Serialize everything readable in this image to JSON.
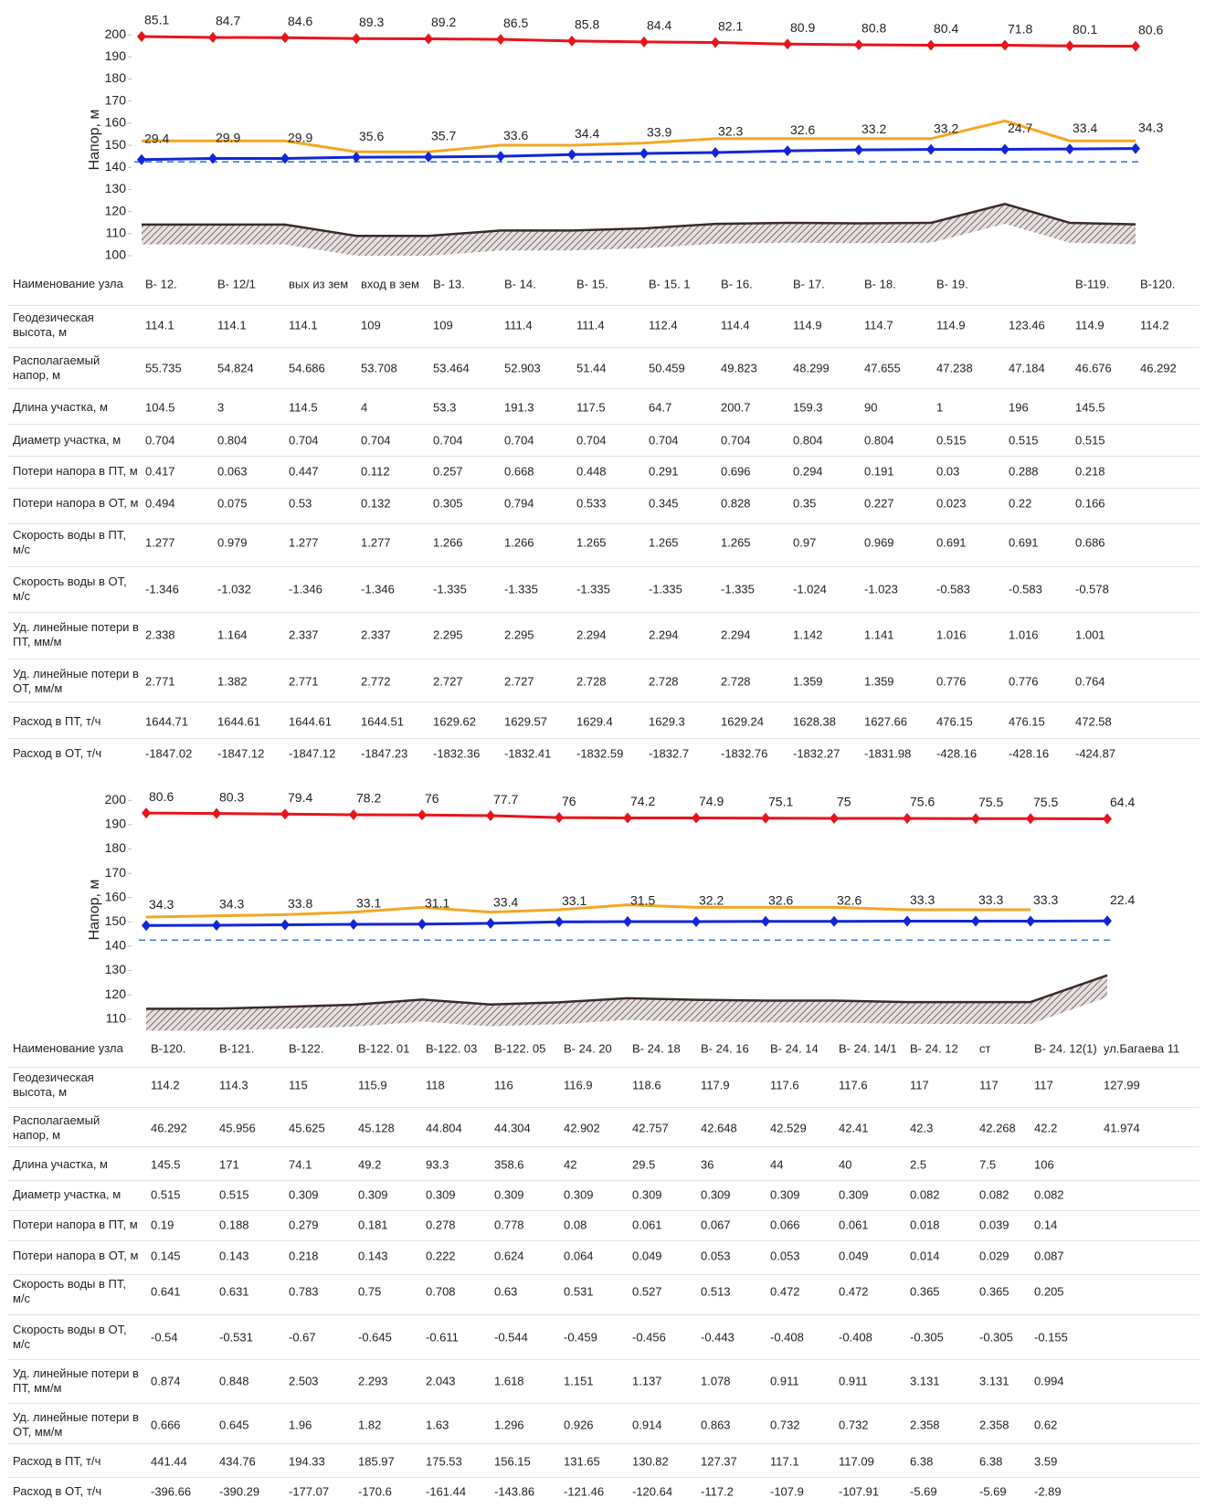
{
  "chart_data": [
    {
      "type": "line",
      "ylabel": "Напор, м",
      "ylim": [
        100,
        205
      ],
      "yticks": [
        100,
        110,
        120,
        130,
        140,
        150,
        160,
        170,
        180,
        190,
        200
      ],
      "reference_line": {
        "value": 142.5,
        "color": "#3a7bd5"
      },
      "series": [
        {
          "color": "#e8141b",
          "marker": "diamond",
          "values": [
            199.2,
            198.8,
            198.7,
            198.3,
            198.2,
            197.9,
            197.2,
            196.8,
            196.5,
            195.8,
            195.5,
            195.3,
            195.26,
            195.0,
            194.8
          ],
          "labels": [
            "85.1",
            "84.7",
            "84.6",
            "89.3",
            "89.2",
            "86.5",
            "85.8",
            "84.4",
            "82.1",
            "80.9",
            "80.8",
            "80.4",
            "71.8",
            "80.1",
            "80.6"
          ]
        },
        {
          "color": "#f5a623",
          "values": [
            152,
            152,
            152,
            147,
            147,
            150,
            150,
            151,
            153,
            153,
            153,
            153,
            161,
            152,
            152
          ]
        },
        {
          "color": "#1226d6",
          "marker": "diamond",
          "values": [
            143.5,
            144,
            144,
            144.6,
            144.7,
            145,
            145.8,
            146.3,
            146.7,
            147.5,
            147.9,
            148.1,
            148.16,
            148.3,
            148.5
          ],
          "labels": [
            "29.4",
            "29.9",
            "29.9",
            "35.6",
            "35.7",
            "33.6",
            "34.4",
            "33.9",
            "32.3",
            "32.6",
            "33.2",
            "33.2",
            "24.7",
            "33.4",
            "34.3"
          ]
        },
        {
          "color": "#3b2a2a",
          "style": "ground",
          "values": [
            114.1,
            114.1,
            114.1,
            109,
            109,
            111.4,
            111.4,
            112.4,
            114.4,
            114.9,
            114.7,
            114.9,
            123.46,
            114.9,
            114.2
          ]
        }
      ]
    },
    {
      "type": "line",
      "ylabel": "Напор, м",
      "ylim": [
        105,
        205
      ],
      "yticks": [
        110,
        120,
        130,
        140,
        150,
        160,
        170,
        180,
        190,
        200
      ],
      "reference_line": {
        "value": 142.5,
        "color": "#3a7bd5"
      },
      "series": [
        {
          "color": "#e8141b",
          "marker": "diamond",
          "values": [
            194.8,
            194.6,
            194.4,
            194.1,
            194,
            193.7,
            192.9,
            192.8,
            192.8,
            192.7,
            192.6,
            192.6,
            192.5,
            192.5,
            192.39
          ],
          "labels": [
            "80.6",
            "80.3",
            "79.4",
            "78.2",
            "76",
            "77.7",
            "76",
            "74.2",
            "74.9",
            "75.1",
            "75",
            "75.6",
            "75.5",
            "75.5",
            "64.4"
          ]
        },
        {
          "color": "#f5a623",
          "values": [
            152,
            152.5,
            153,
            154,
            156,
            154,
            155,
            157,
            156,
            156,
            156,
            155,
            155,
            155,
            null
          ]
        },
        {
          "color": "#1226d6",
          "marker": "diamond",
          "values": [
            148.5,
            148.6,
            148.8,
            149,
            149.1,
            149.4,
            150,
            150.1,
            150.1,
            150.2,
            150.2,
            150.3,
            150.3,
            150.3,
            150.39
          ],
          "labels": [
            "34.3",
            "34.3",
            "33.8",
            "33.1",
            "31.1",
            "33.4",
            "33.1",
            "31.5",
            "32.2",
            "32.6",
            "32.6",
            "33.3",
            "33.3",
            "33.3",
            "22.4"
          ]
        },
        {
          "color": "#3b2a2a",
          "style": "ground",
          "values": [
            114.2,
            114.3,
            115,
            115.9,
            118,
            116,
            116.9,
            118.6,
            117.9,
            117.6,
            117.6,
            117,
            117,
            117,
            127.99
          ]
        }
      ]
    }
  ],
  "tables": [
    {
      "row_labels": [
        "Наименование узла",
        "Геодезическая высота, м",
        "Располагаемый напор, м",
        "Длина участка, м",
        "Диаметр участка, м",
        "Потери напора в ПТ, м",
        "Потери напора в ОТ, м",
        "Скорость воды в ПТ, м/с",
        "Скорость воды в ОТ, м/с",
        "Уд. линейные потери в ПТ, мм/м",
        "Уд. линейные потери в ОТ, мм/м",
        "Расход в ПТ, т/ч",
        "Расход в ОТ, т/ч"
      ],
      "rows": [
        [
          "В- 12.",
          "В- 12/1",
          "вых из зем",
          "вход в зем",
          "В- 13.",
          "В- 14.",
          "В- 15.",
          "В- 15. 1",
          "В- 16.",
          "В- 17.",
          "В- 18.",
          "В- 19.",
          null,
          "В-119.",
          "В-120."
        ],
        [
          114.1,
          114.1,
          114.1,
          109,
          109,
          111.4,
          111.4,
          112.4,
          114.4,
          114.9,
          114.7,
          114.9,
          123.46,
          114.9,
          114.2
        ],
        [
          55.735,
          54.824,
          54.686,
          53.708,
          53.464,
          52.903,
          51.44,
          50.459,
          49.823,
          48.299,
          47.655,
          47.238,
          47.184,
          46.676,
          46.292
        ],
        [
          104.5,
          3,
          114.5,
          4,
          53.3,
          191.3,
          117.5,
          64.7,
          200.7,
          159.3,
          90,
          1,
          196,
          145.5
        ],
        [
          0.704,
          0.804,
          0.704,
          0.704,
          0.704,
          0.704,
          0.704,
          0.704,
          0.704,
          0.804,
          0.804,
          0.515,
          0.515,
          0.515
        ],
        [
          0.417,
          0.063,
          0.447,
          0.112,
          0.257,
          0.668,
          0.448,
          0.291,
          0.696,
          0.294,
          0.191,
          0.03,
          0.288,
          0.218
        ],
        [
          0.494,
          0.075,
          0.53,
          0.132,
          0.305,
          0.794,
          0.533,
          0.345,
          0.828,
          0.35,
          0.227,
          0.023,
          0.22,
          0.166
        ],
        [
          1.277,
          0.979,
          1.277,
          1.277,
          1.266,
          1.266,
          1.265,
          1.265,
          1.265,
          0.97,
          0.969,
          0.691,
          0.691,
          0.686
        ],
        [
          -1.346,
          -1.032,
          -1.346,
          -1.346,
          -1.335,
          -1.335,
          -1.335,
          -1.335,
          -1.335,
          -1.024,
          -1.023,
          -0.583,
          -0.583,
          -0.578
        ],
        [
          2.338,
          1.164,
          2.337,
          2.337,
          2.295,
          2.295,
          2.294,
          2.294,
          2.294,
          1.142,
          1.141,
          1.016,
          1.016,
          1.001
        ],
        [
          2.771,
          1.382,
          2.771,
          2.772,
          2.727,
          2.727,
          2.728,
          2.728,
          2.728,
          1.359,
          1.359,
          0.776,
          0.776,
          0.764
        ],
        [
          1644.71,
          1644.61,
          1644.61,
          1644.51,
          1629.62,
          1629.57,
          1629.4,
          1629.3,
          1629.24,
          1628.38,
          1627.66,
          476.15,
          476.15,
          472.58
        ],
        [
          -1847.02,
          -1847.12,
          -1847.12,
          -1847.23,
          -1832.36,
          -1832.41,
          -1832.59,
          -1832.7,
          -1832.76,
          -1832.27,
          -1831.98,
          -428.16,
          -428.16,
          -424.87
        ]
      ]
    },
    {
      "row_labels": [
        "Наименование узла",
        "Геодезическая высота, м",
        "Располагаемый напор, м",
        "Длина участка, м",
        "Диаметр участка, м",
        "Потери напора в ПТ, м",
        "Потери напора в ОТ, м",
        "Скорость воды в ПТ, м/с",
        "Скорость воды в ОТ, м/с",
        "Уд. линейные потери в ПТ, мм/м",
        "Уд. линейные потери в ОТ, мм/м",
        "Расход в ПТ, т/ч",
        "Расход в ОТ, т/ч"
      ],
      "rows": [
        [
          "В-120.",
          "В-121.",
          "В-122.",
          "В-122. 01",
          "В-122. 03",
          "В-122. 05",
          "В- 24. 20",
          "В- 24. 18",
          "В- 24. 16",
          "В- 24. 14",
          "В- 24. 14/1",
          "В- 24. 12",
          "ст",
          "В- 24. 12(1)",
          "ул.Багаева 11"
        ],
        [
          114.2,
          114.3,
          115,
          115.9,
          118,
          116,
          116.9,
          118.6,
          117.9,
          117.6,
          117.6,
          117,
          117,
          117,
          127.99
        ],
        [
          46.292,
          45.956,
          45.625,
          45.128,
          44.804,
          44.304,
          42.902,
          42.757,
          42.648,
          42.529,
          42.41,
          42.3,
          42.268,
          42.2,
          41.974
        ],
        [
          145.5,
          171,
          74.1,
          49.2,
          93.3,
          358.6,
          42,
          29.5,
          36,
          44,
          40,
          2.5,
          7.5,
          106
        ],
        [
          0.515,
          0.515,
          0.309,
          0.309,
          0.309,
          0.309,
          0.309,
          0.309,
          0.309,
          0.309,
          0.309,
          0.082,
          0.082,
          0.082
        ],
        [
          0.19,
          0.188,
          0.279,
          0.181,
          0.278,
          0.778,
          0.08,
          0.061,
          0.067,
          0.066,
          0.061,
          0.018,
          0.039,
          0.14
        ],
        [
          0.145,
          0.143,
          0.218,
          0.143,
          0.222,
          0.624,
          0.064,
          0.049,
          0.053,
          0.053,
          0.049,
          0.014,
          0.029,
          0.087
        ],
        [
          0.641,
          0.631,
          0.783,
          0.75,
          0.708,
          0.63,
          0.531,
          0.527,
          0.513,
          0.472,
          0.472,
          0.365,
          0.365,
          0.205
        ],
        [
          -0.54,
          -0.531,
          -0.67,
          -0.645,
          -0.611,
          -0.544,
          -0.459,
          -0.456,
          -0.443,
          -0.408,
          -0.408,
          -0.305,
          -0.305,
          -0.155
        ],
        [
          0.874,
          0.848,
          2.503,
          2.293,
          2.043,
          1.618,
          1.151,
          1.137,
          1.078,
          0.911,
          0.911,
          3.131,
          3.131,
          0.994
        ],
        [
          0.666,
          0.645,
          1.96,
          1.82,
          1.63,
          1.296,
          0.926,
          0.914,
          0.863,
          0.732,
          0.732,
          2.358,
          2.358,
          0.62
        ],
        [
          441.44,
          434.76,
          194.33,
          185.97,
          175.53,
          156.15,
          131.65,
          130.82,
          127.37,
          117.1,
          117.09,
          6.38,
          6.38,
          3.59
        ],
        [
          -396.66,
          -390.29,
          -177.07,
          -170.6,
          -161.44,
          -143.86,
          -121.46,
          -120.64,
          -117.2,
          -107.9,
          -107.91,
          -5.69,
          -5.69,
          -2.89
        ]
      ]
    }
  ]
}
